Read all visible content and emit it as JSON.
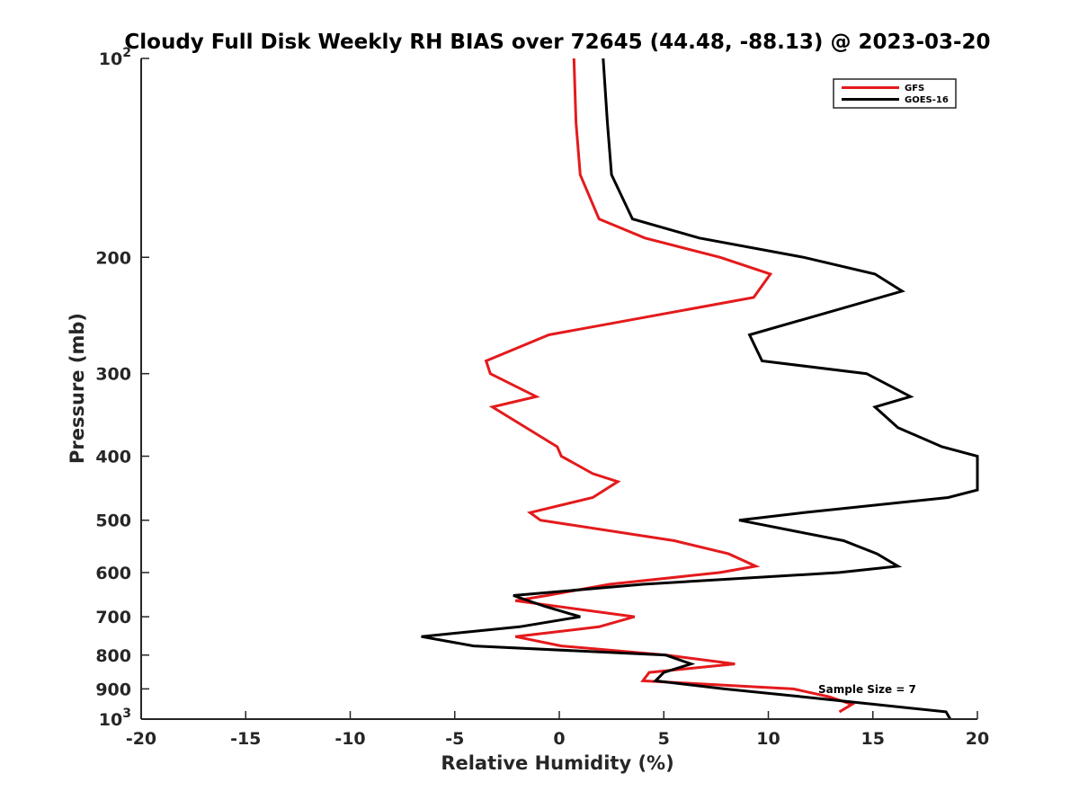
{
  "chart_data": {
    "type": "line",
    "title": "Cloudy Full Disk Weekly RH BIAS over 72645 (44.48, -88.13) @ 2023-03-20",
    "xlabel": "Relative Humidity (%)",
    "ylabel": "Pressure (mb)",
    "xlim": [
      -20,
      20
    ],
    "ylim": [
      100,
      1000
    ],
    "y_scale": "log",
    "y_reversed": true,
    "x_ticks": [
      "-20",
      "-15",
      "-10",
      "-5",
      "0",
      "5",
      "10",
      "15",
      "20"
    ],
    "y_ticks": [
      {
        "value": 100,
        "base": "10",
        "exp": "2"
      },
      {
        "value": 200,
        "label": "200"
      },
      {
        "value": 300,
        "label": "300"
      },
      {
        "value": 400,
        "label": "400"
      },
      {
        "value": 500,
        "label": "500"
      },
      {
        "value": 600,
        "label": "600"
      },
      {
        "value": 700,
        "label": "700"
      },
      {
        "value": 800,
        "label": "800"
      },
      {
        "value": 900,
        "label": "900"
      },
      {
        "value": 1000,
        "base": "10",
        "exp": "3"
      }
    ],
    "legend_position": "top-right",
    "annotation": "Sample Size = 7",
    "series": [
      {
        "name": "GFS",
        "color": "#e41a1c",
        "points": [
          [
            0.7,
            100
          ],
          [
            0.8,
            125
          ],
          [
            1.0,
            150
          ],
          [
            1.9,
            175
          ],
          [
            4.1,
            187
          ],
          [
            7.7,
            200
          ],
          [
            10.1,
            212
          ],
          [
            9.3,
            230
          ],
          [
            -0.5,
            262
          ],
          [
            -3.5,
            287
          ],
          [
            -3.3,
            300
          ],
          [
            -1.1,
            325
          ],
          [
            -3.2,
            337
          ],
          [
            -0.1,
            387
          ],
          [
            0.1,
            400
          ],
          [
            1.6,
            425
          ],
          [
            2.8,
            437
          ],
          [
            1.6,
            462
          ],
          [
            -1.4,
            487
          ],
          [
            -0.9,
            500
          ],
          [
            5.5,
            537
          ],
          [
            8.1,
            562
          ],
          [
            9.4,
            587
          ],
          [
            7.7,
            600
          ],
          [
            2.4,
            625
          ],
          [
            -0.6,
            650
          ],
          [
            -2.1,
            662
          ],
          [
            3.6,
            700
          ],
          [
            1.9,
            725
          ],
          [
            -2.1,
            750
          ],
          [
            0.1,
            775
          ],
          [
            5.1,
            800
          ],
          [
            8.4,
            825
          ],
          [
            4.3,
            850
          ],
          [
            4.0,
            875
          ],
          [
            11.2,
            900
          ],
          [
            12.9,
            925
          ],
          [
            14.0,
            950
          ],
          [
            13.4,
            975
          ]
        ]
      },
      {
        "name": "GOES-16",
        "color": "#000000",
        "points": [
          [
            2.1,
            100
          ],
          [
            2.3,
            125
          ],
          [
            2.5,
            150
          ],
          [
            3.5,
            175
          ],
          [
            6.7,
            187
          ],
          [
            11.7,
            200
          ],
          [
            15.1,
            212
          ],
          [
            16.4,
            225
          ],
          [
            9.1,
            262
          ],
          [
            9.7,
            287
          ],
          [
            14.7,
            300
          ],
          [
            16.8,
            325
          ],
          [
            15.1,
            337
          ],
          [
            16.2,
            362
          ],
          [
            18.3,
            387
          ],
          [
            20.0,
            400
          ],
          [
            20.0,
            450
          ],
          [
            18.6,
            462
          ],
          [
            11.7,
            487
          ],
          [
            8.6,
            500
          ],
          [
            13.6,
            537
          ],
          [
            15.2,
            562
          ],
          [
            16.2,
            587
          ],
          [
            13.4,
            600
          ],
          [
            4.0,
            625
          ],
          [
            -2.2,
            650
          ],
          [
            -0.7,
            675
          ],
          [
            1.0,
            700
          ],
          [
            -1.9,
            725
          ],
          [
            -6.6,
            750
          ],
          [
            -4.1,
            775
          ],
          [
            5.1,
            800
          ],
          [
            6.3,
            825
          ],
          [
            5.0,
            850
          ],
          [
            4.6,
            875
          ],
          [
            7.9,
            900
          ],
          [
            11.6,
            925
          ],
          [
            15.1,
            950
          ],
          [
            18.5,
            975
          ],
          [
            18.7,
            1000
          ]
        ]
      }
    ]
  }
}
